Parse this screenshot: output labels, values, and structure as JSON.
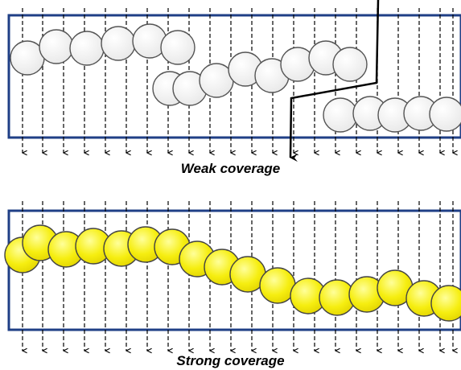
{
  "panels": [
    {
      "id": "weak",
      "caption": "Weak coverage",
      "ball_color": "#e8e8e8",
      "ball_highlight": "#ffffff",
      "ball_stroke": "#555555"
    },
    {
      "id": "strong",
      "caption": "Strong coverage",
      "ball_color": "#f2ea00",
      "ball_highlight": "#ffff9a",
      "ball_stroke": "#444444"
    }
  ],
  "colors": {
    "frame": "#1f3f86",
    "arrow": "#000000",
    "path": "#000000"
  }
}
